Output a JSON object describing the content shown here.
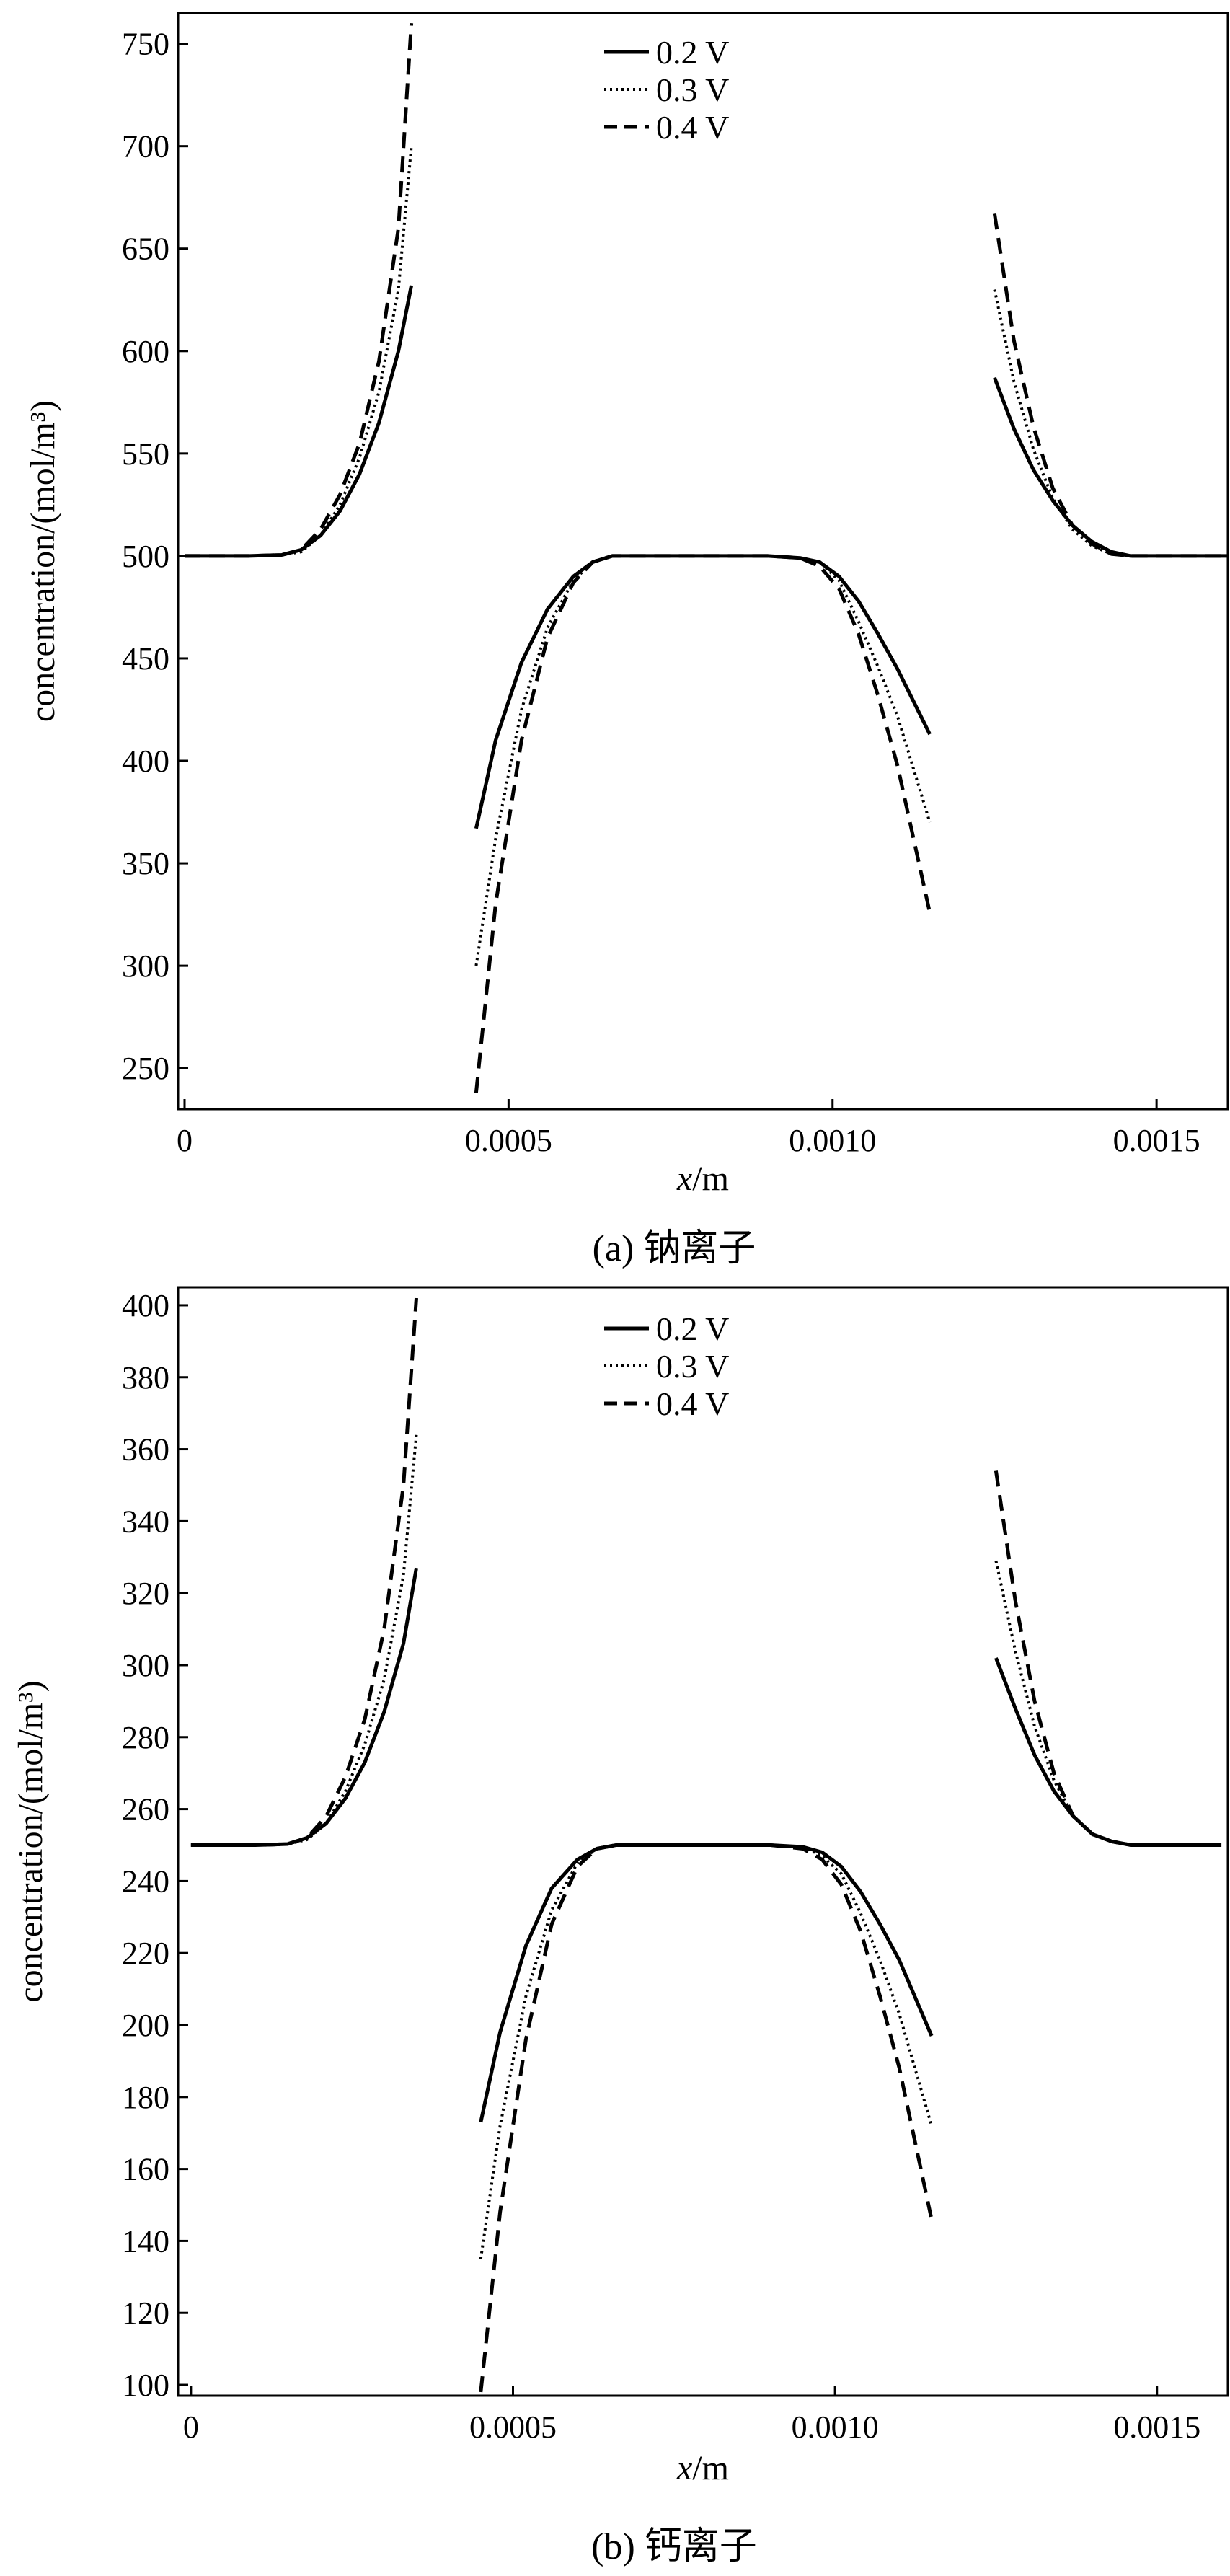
{
  "chart_data": [
    {
      "type": "line",
      "caption": "(a) 钠离子",
      "xlabel_var": "x",
      "xlabel_unit": "/m",
      "ylabel": "concentration/(mol/m³)",
      "xlim": [
        -1e-05,
        0.00161
      ],
      "ylim": [
        230,
        765
      ],
      "xticks": [
        0,
        0.0005,
        0.001,
        0.0015
      ],
      "xtick_labels": [
        "0",
        "0.0005",
        "0.0010",
        "0.0015"
      ],
      "yticks": [
        250,
        300,
        350,
        400,
        450,
        500,
        550,
        600,
        650,
        700,
        750
      ],
      "ytick_labels": [
        "250",
        "300",
        "350",
        "400",
        "450",
        "500",
        "550",
        "600",
        "650",
        "700",
        "750"
      ],
      "grid": false,
      "legend_position": "top-center",
      "series": [
        {
          "name": "0.2  V",
          "style": "solid",
          "segments": [
            [
              [
                0,
                500
              ],
              [
                0.0001,
                500
              ],
              [
                0.00015,
                500.5
              ],
              [
                0.00018,
                503
              ],
              [
                0.00021,
                510
              ],
              [
                0.00024,
                522
              ],
              [
                0.00027,
                540
              ],
              [
                0.0003,
                565
              ],
              [
                0.00033,
                600
              ],
              [
                0.00035,
                632
              ]
            ],
            [
              [
                0.00045,
                367
              ],
              [
                0.00048,
                410
              ],
              [
                0.00052,
                448
              ],
              [
                0.00056,
                474
              ],
              [
                0.0006,
                490
              ],
              [
                0.00063,
                497
              ],
              [
                0.00066,
                500
              ],
              [
                0.0007,
                500
              ],
              [
                0.0009,
                500
              ],
              [
                0.00095,
                499
              ],
              [
                0.00098,
                497
              ],
              [
                0.00101,
                490
              ],
              [
                0.00104,
                478
              ],
              [
                0.00107,
                462
              ],
              [
                0.0011,
                445
              ],
              [
                0.00115,
                413
              ]
            ],
            [
              [
                0.00125,
                587
              ],
              [
                0.00128,
                562
              ],
              [
                0.00131,
                542
              ],
              [
                0.00134,
                527
              ],
              [
                0.00137,
                515
              ],
              [
                0.0014,
                507
              ],
              [
                0.00143,
                502
              ],
              [
                0.00146,
                500
              ],
              [
                0.00161,
                500
              ]
            ]
          ]
        },
        {
          "name": "0.3  V",
          "style": "dotted",
          "segments": [
            [
              [
                0,
                500
              ],
              [
                0.0001,
                500
              ],
              [
                0.00015,
                500.5
              ],
              [
                0.00018,
                502
              ],
              [
                0.00021,
                510
              ],
              [
                0.00024,
                525
              ],
              [
                0.00027,
                548
              ],
              [
                0.0003,
                580
              ],
              [
                0.00033,
                630
              ],
              [
                0.00035,
                700
              ]
            ],
            [
              [
                0.00045,
                300
              ],
              [
                0.00048,
                362
              ],
              [
                0.00052,
                425
              ],
              [
                0.00056,
                465
              ],
              [
                0.0006,
                488
              ],
              [
                0.00063,
                497
              ],
              [
                0.00066,
                500
              ],
              [
                0.0007,
                500
              ],
              [
                0.0009,
                500
              ],
              [
                0.00095,
                499
              ],
              [
                0.00098,
                497
              ],
              [
                0.00101,
                488
              ],
              [
                0.00104,
                468
              ],
              [
                0.00107,
                446
              ],
              [
                0.0011,
                422
              ],
              [
                0.00115,
                370
              ]
            ],
            [
              [
                0.00125,
                630
              ],
              [
                0.00128,
                585
              ],
              [
                0.00131,
                552
              ],
              [
                0.00134,
                528
              ],
              [
                0.00137,
                513
              ],
              [
                0.0014,
                505
              ],
              [
                0.00143,
                501
              ],
              [
                0.00146,
                500
              ],
              [
                0.00161,
                500
              ]
            ]
          ]
        },
        {
          "name": "0.4  V",
          "style": "dashed",
          "segments": [
            [
              [
                0,
                500
              ],
              [
                0.0001,
                500
              ],
              [
                0.00015,
                500.5
              ],
              [
                0.00018,
                503
              ],
              [
                0.00021,
                513
              ],
              [
                0.00024,
                530
              ],
              [
                0.00027,
                555
              ],
              [
                0.0003,
                595
              ],
              [
                0.00033,
                660
              ],
              [
                0.00035,
                760
              ]
            ],
            [
              [
                0.00045,
                238
              ],
              [
                0.00048,
                330
              ],
              [
                0.00052,
                410
              ],
              [
                0.00056,
                460
              ],
              [
                0.0006,
                487
              ],
              [
                0.00063,
                497
              ],
              [
                0.00066,
                500
              ],
              [
                0.0007,
                500
              ],
              [
                0.0009,
                500
              ],
              [
                0.00095,
                499
              ],
              [
                0.00098,
                495
              ],
              [
                0.00101,
                484
              ],
              [
                0.00104,
                462
              ],
              [
                0.00107,
                432
              ],
              [
                0.0011,
                398
              ],
              [
                0.00115,
                326
              ]
            ],
            [
              [
                0.00125,
                667
              ],
              [
                0.00128,
                605
              ],
              [
                0.00131,
                563
              ],
              [
                0.00134,
                533
              ],
              [
                0.00137,
                515
              ],
              [
                0.0014,
                506
              ],
              [
                0.00143,
                501
              ],
              [
                0.00146,
                500
              ],
              [
                0.00161,
                500
              ]
            ]
          ]
        }
      ]
    },
    {
      "type": "line",
      "caption": "(b) 钙离子",
      "xlabel_var": "x",
      "xlabel_unit": "/m",
      "ylabel": "concentration/(mol/m³)",
      "xlim": [
        -2e-05,
        0.00161
      ],
      "ylim": [
        97,
        405
      ],
      "xticks": [
        0,
        0.0005,
        0.001,
        0.0015
      ],
      "xtick_labels": [
        "0",
        "0.0005",
        "0.0010",
        "0.0015"
      ],
      "yticks": [
        100,
        120,
        140,
        160,
        180,
        200,
        220,
        240,
        260,
        280,
        300,
        320,
        340,
        360,
        380,
        400
      ],
      "ytick_labels": [
        "100",
        "120",
        "140",
        "160",
        "180",
        "200",
        "220",
        "240",
        "260",
        "280",
        "300",
        "320",
        "340",
        "360",
        "380",
        "400"
      ],
      "grid": false,
      "legend_position": "top-center",
      "series": [
        {
          "name": "0.2  V",
          "style": "solid",
          "segments": [
            [
              [
                0,
                250
              ],
              [
                0.0001,
                250
              ],
              [
                0.00015,
                250.3
              ],
              [
                0.00018,
                252
              ],
              [
                0.00021,
                256
              ],
              [
                0.00024,
                263
              ],
              [
                0.00027,
                273
              ],
              [
                0.0003,
                287
              ],
              [
                0.00033,
                306
              ],
              [
                0.00035,
                327
              ]
            ],
            [
              [
                0.00045,
                173
              ],
              [
                0.00048,
                198
              ],
              [
                0.00052,
                222
              ],
              [
                0.00056,
                238
              ],
              [
                0.0006,
                246
              ],
              [
                0.00063,
                249
              ],
              [
                0.00066,
                250
              ],
              [
                0.0007,
                250
              ],
              [
                0.0009,
                250
              ],
              [
                0.00095,
                249.5
              ],
              [
                0.00098,
                248
              ],
              [
                0.00101,
                244
              ],
              [
                0.00104,
                237
              ],
              [
                0.00107,
                228
              ],
              [
                0.0011,
                218
              ],
              [
                0.00115,
                197
              ]
            ],
            [
              [
                0.00125,
                302
              ],
              [
                0.00128,
                288
              ],
              [
                0.00131,
                275
              ],
              [
                0.00134,
                265
              ],
              [
                0.00137,
                258
              ],
              [
                0.0014,
                253
              ],
              [
                0.00143,
                251
              ],
              [
                0.00146,
                250
              ],
              [
                0.0016,
                250
              ]
            ]
          ]
        },
        {
          "name": "0.3  V",
          "style": "dotted",
          "segments": [
            [
              [
                0,
                250
              ],
              [
                0.0001,
                250
              ],
              [
                0.00015,
                250.3
              ],
              [
                0.00018,
                251.5
              ],
              [
                0.00021,
                256
              ],
              [
                0.00024,
                265
              ],
              [
                0.00027,
                278
              ],
              [
                0.0003,
                296
              ],
              [
                0.00033,
                325
              ],
              [
                0.00035,
                364
              ]
            ],
            [
              [
                0.00045,
                135
              ],
              [
                0.00048,
                172
              ],
              [
                0.00052,
                208
              ],
              [
                0.00056,
                232
              ],
              [
                0.0006,
                245
              ],
              [
                0.00063,
                249
              ],
              [
                0.00066,
                250
              ],
              [
                0.0007,
                250
              ],
              [
                0.0009,
                250
              ],
              [
                0.00095,
                249.5
              ],
              [
                0.00098,
                247
              ],
              [
                0.00101,
                242
              ],
              [
                0.00104,
                231
              ],
              [
                0.00107,
                218
              ],
              [
                0.0011,
                203
              ],
              [
                0.00115,
                172
              ]
            ],
            [
              [
                0.00125,
                329
              ],
              [
                0.00128,
                304
              ],
              [
                0.00131,
                283
              ],
              [
                0.00134,
                268
              ],
              [
                0.00137,
                258
              ],
              [
                0.0014,
                253
              ],
              [
                0.00143,
                251
              ],
              [
                0.00146,
                250
              ],
              [
                0.0016,
                250
              ]
            ]
          ]
        },
        {
          "name": "0.4  V",
          "style": "dashed",
          "segments": [
            [
              [
                0,
                250
              ],
              [
                0.0001,
                250
              ],
              [
                0.00015,
                250.3
              ],
              [
                0.00018,
                252
              ],
              [
                0.00021,
                258
              ],
              [
                0.00024,
                269
              ],
              [
                0.00027,
                285
              ],
              [
                0.0003,
                310
              ],
              [
                0.00033,
                350
              ],
              [
                0.00035,
                402
              ]
            ],
            [
              [
                0.00045,
                98
              ],
              [
                0.00048,
                148
              ],
              [
                0.00052,
                196
              ],
              [
                0.00056,
                228
              ],
              [
                0.0006,
                244
              ],
              [
                0.00063,
                249
              ],
              [
                0.00066,
                250
              ],
              [
                0.0007,
                250
              ],
              [
                0.0009,
                250
              ],
              [
                0.00095,
                249
              ],
              [
                0.00098,
                246
              ],
              [
                0.00101,
                239
              ],
              [
                0.00104,
                226
              ],
              [
                0.00107,
                208
              ],
              [
                0.0011,
                188
              ],
              [
                0.00115,
                146
              ]
            ],
            [
              [
                0.00125,
                354
              ],
              [
                0.00128,
                318
              ],
              [
                0.00131,
                290
              ],
              [
                0.00134,
                270
              ],
              [
                0.00137,
                258
              ],
              [
                0.0014,
                253
              ],
              [
                0.00143,
                251
              ],
              [
                0.00146,
                250
              ],
              [
                0.0016,
                250
              ]
            ]
          ]
        }
      ]
    }
  ]
}
